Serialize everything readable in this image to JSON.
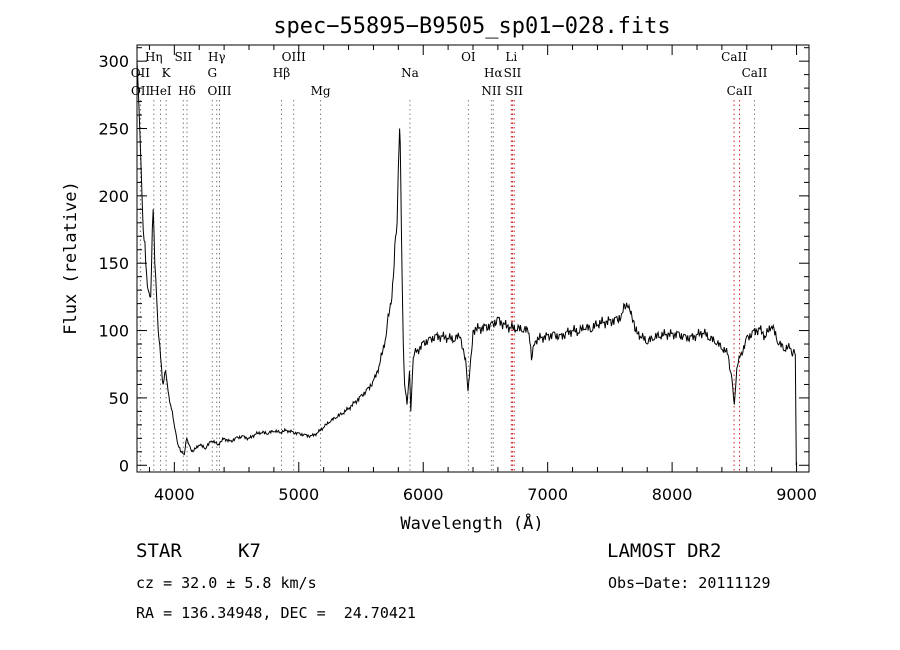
{
  "chart_data": {
    "type": "line",
    "title": "spec−55895−B9505_sp01−028.fits",
    "xlabel": "Wavelength (Å)",
    "ylabel": "Flux (relative)",
    "xlim": [
      3700,
      9100
    ],
    "ylim": [
      -5,
      312
    ],
    "xticks": [
      4000,
      5000,
      6000,
      7000,
      8000,
      9000
    ],
    "yticks": [
      0,
      50,
      100,
      150,
      200,
      250,
      300
    ],
    "grid": false,
    "legend": "none",
    "series": [
      {
        "color": "#000000",
        "x": [
          3700,
          3710,
          3720,
          3730,
          3740,
          3750,
          3770,
          3790,
          3810,
          3830,
          3850,
          3870,
          3890,
          3910,
          3930,
          3950,
          3970,
          3990,
          4010,
          4030,
          4050,
          4080,
          4100,
          4120,
          4150,
          4200,
          4250,
          4300,
          4350,
          4400,
          4450,
          4500,
          4550,
          4600,
          4650,
          4700,
          4750,
          4800,
          4850,
          4900,
          4950,
          5000,
          5050,
          5100,
          5150,
          5200,
          5250,
          5300,
          5350,
          5400,
          5450,
          5500,
          5550,
          5600,
          5650,
          5700,
          5730,
          5760,
          5790,
          5800,
          5810,
          5815,
          5820,
          5830,
          5840,
          5850,
          5870,
          5890,
          5900,
          5920,
          5950,
          6000,
          6050,
          6100,
          6150,
          6200,
          6250,
          6300,
          6340,
          6360,
          6400,
          6450,
          6500,
          6550,
          6600,
          6650,
          6700,
          6750,
          6800,
          6850,
          6870,
          6900,
          6950,
          7000,
          7050,
          7100,
          7150,
          7200,
          7250,
          7300,
          7350,
          7400,
          7450,
          7500,
          7550,
          7600,
          7640,
          7660,
          7700,
          7750,
          7800,
          7850,
          7900,
          7950,
          8000,
          8050,
          8100,
          8150,
          8200,
          8250,
          8300,
          8350,
          8400,
          8450,
          8480,
          8500,
          8520,
          8550,
          8600,
          8650,
          8700,
          8750,
          8800,
          8850,
          8900,
          8950,
          8990,
          8998
        ],
        "y": [
          300,
          280,
          255,
          230,
          200,
          175,
          150,
          130,
          125,
          190,
          140,
          100,
          80,
          60,
          70,
          55,
          45,
          35,
          25,
          15,
          10,
          8,
          20,
          15,
          10,
          15,
          12,
          18,
          15,
          20,
          18,
          21,
          22,
          20,
          23,
          24,
          23,
          25,
          24,
          26,
          25,
          24,
          23,
          22,
          24,
          28,
          32,
          35,
          38,
          42,
          47,
          52,
          57,
          63,
          75,
          95,
          115,
          140,
          180,
          220,
          250,
          240,
          210,
          140,
          90,
          60,
          45,
          70,
          40,
          80,
          85,
          92,
          95,
          97,
          96,
          94,
          92,
          95,
          80,
          55,
          100,
          102,
          104,
          106,
          110,
          105,
          102,
          100,
          99,
          98,
          78,
          92,
          95,
          97,
          99,
          97,
          99,
          100,
          98,
          101,
          99,
          104,
          106,
          108,
          110,
          113,
          118,
          115,
          100,
          95,
          90,
          93,
          95,
          97,
          98,
          99,
          97,
          96,
          97,
          98,
          93,
          90,
          86,
          82,
          65,
          45,
          72,
          82,
          96,
          100,
          102,
          95,
          103,
          90,
          85,
          87,
          82,
          0
        ]
      }
    ],
    "line_markers": [
      {
        "label": "OII",
        "x": 3727,
        "row": 2,
        "color": "#808080"
      },
      {
        "label": "OII",
        "x": 3729,
        "row": 3,
        "color": "#808080"
      },
      {
        "label": "Hη",
        "x": 3835,
        "row": 1,
        "color": "#808080"
      },
      {
        "label": "K",
        "x": 3934,
        "row": 2,
        "color": "#808080"
      },
      {
        "label": "HeI",
        "x": 3889,
        "row": 3,
        "color": "#808080"
      },
      {
        "label": "SII",
        "x": 4072,
        "row": 1,
        "color": "#808080"
      },
      {
        "label": "Hδ",
        "x": 4102,
        "row": 3,
        "color": "#808080"
      },
      {
        "label": "Hγ",
        "x": 4341,
        "row": 1,
        "color": "#808080"
      },
      {
        "label": "G",
        "x": 4305,
        "row": 2,
        "color": "#808080"
      },
      {
        "label": "OIII",
        "x": 4363,
        "row": 3,
        "color": "#808080"
      },
      {
        "label": "OIII",
        "x": 4959,
        "row": 1,
        "color": "#808080"
      },
      {
        "label": "Hβ",
        "x": 4861,
        "row": 2,
        "color": "#808080"
      },
      {
        "label": "Mg",
        "x": 5175,
        "row": 3,
        "color": "#808080"
      },
      {
        "label": "Na",
        "x": 5893,
        "row": 2,
        "color": "#808080"
      },
      {
        "label": "OI",
        "x": 6363,
        "row": 1,
        "color": "#808080"
      },
      {
        "label": "Hα",
        "x": 6563,
        "row": 2,
        "color": "#808080"
      },
      {
        "label": "NII",
        "x": 6548,
        "row": 3,
        "color": "#808080"
      },
      {
        "label": "Li",
        "x": 6708,
        "row": 1,
        "color": "#cc2222"
      },
      {
        "label": "SII",
        "x": 6717,
        "row": 2,
        "color": "#cc2222"
      },
      {
        "label": "SII",
        "x": 6731,
        "row": 3,
        "color": "#cc2222"
      },
      {
        "label": "CaII",
        "x": 8498,
        "row": 1,
        "color": "#cc2222"
      },
      {
        "label": "CaII",
        "x": 8542,
        "row": 3,
        "color": "#cc2222"
      },
      {
        "label": "CaII",
        "x": 8662,
        "row": 2,
        "color": "#808080"
      }
    ]
  },
  "info": {
    "object_class": "STAR",
    "subclass": "K7",
    "survey": "LAMOST DR2",
    "cz": "cz = 32.0 ± 5.8 km/s",
    "obs_date": "Obs−Date: 20111129",
    "coords": "RA = 136.34948, DEC =  24.70421"
  }
}
